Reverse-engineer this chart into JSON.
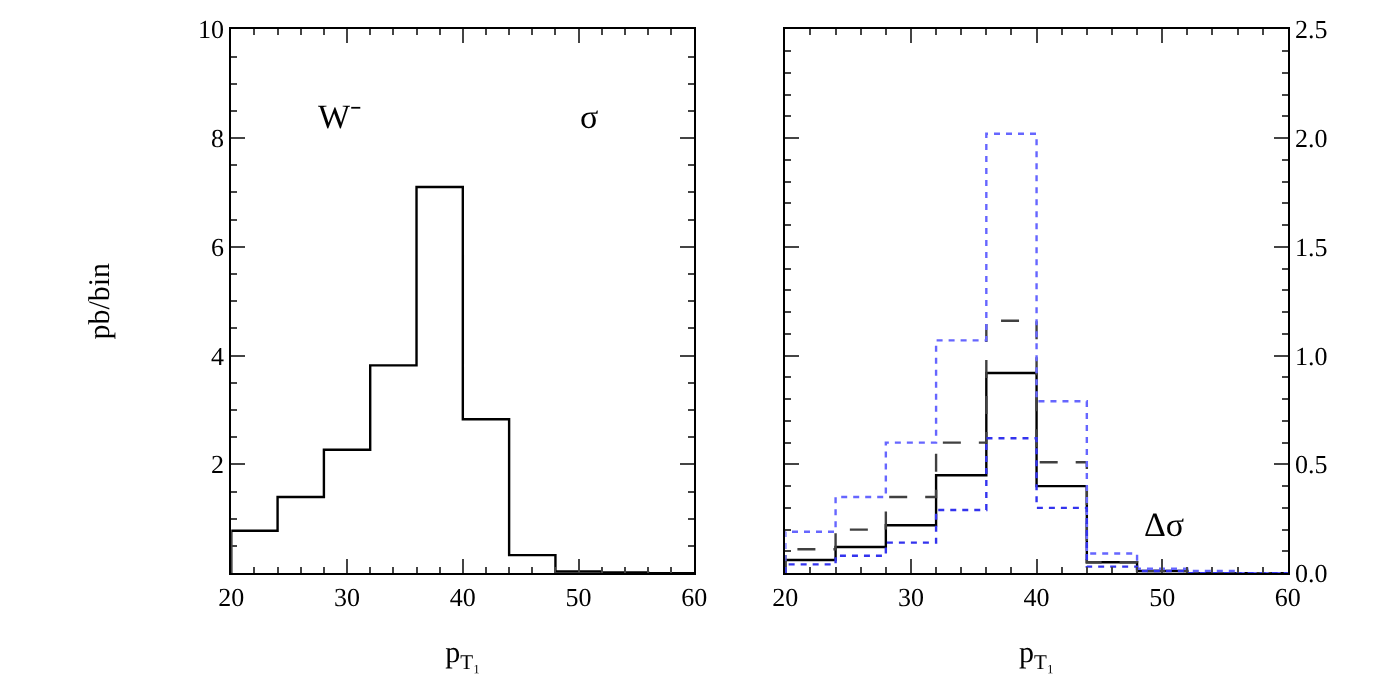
{
  "chart_data": [
    {
      "type": "histogram",
      "bins": [
        20,
        24,
        28,
        32,
        36,
        40,
        44,
        48,
        52,
        56,
        60
      ],
      "values": [
        0.78,
        1.4,
        2.27,
        3.82,
        7.1,
        2.83,
        0.33,
        0.03,
        0.01,
        0
      ],
      "color": "#000000",
      "line_style": "solid",
      "xlim": [
        20,
        60
      ],
      "xticks": [
        20,
        30,
        40,
        50,
        60
      ],
      "ylim": [
        0,
        10
      ],
      "yticks": [
        2,
        4,
        6,
        8,
        10
      ],
      "xlabel": "p$_{T₁}$",
      "ylabel": "pb/bin",
      "annotations": [
        "W⁻",
        "σ"
      ]
    },
    {
      "type": "histogram",
      "bins": [
        20,
        24,
        28,
        32,
        36,
        40,
        44,
        48,
        52,
        56,
        60
      ],
      "series": [
        {
          "color": "#000000",
          "line_style": "solid",
          "axis": "y2",
          "values": [
            0.06,
            0.12,
            0.22,
            0.45,
            0.92,
            0.4,
            0.05,
            0.01,
            0,
            0
          ]
        },
        {
          "color": "#404040",
          "line_style": "dashed",
          "axis": "y2",
          "values": [
            0.11,
            0.2,
            0.35,
            0.6,
            1.16,
            0.51,
            0.05,
            0.01,
            0,
            0
          ]
        },
        {
          "color": "#6666ff",
          "line_style": "dotted",
          "axis": "y2",
          "values": [
            0.19,
            0.35,
            0.6,
            1.07,
            2.02,
            0.79,
            0.09,
            0.02,
            0.01,
            0
          ]
        },
        {
          "color": "#3333ee",
          "line_style": "dotted",
          "axis": "y2",
          "values": [
            0.04,
            0.08,
            0.14,
            0.29,
            0.62,
            0.3,
            0.03,
            0.01,
            0,
            0
          ]
        }
      ],
      "xlim": [
        20,
        60
      ],
      "xticks": [
        20,
        30,
        40,
        50,
        60
      ],
      "y2lim": [
        0,
        2.5
      ],
      "y2ticks": [
        {
          "value": 0,
          "label": "0.0"
        },
        0.5,
        {
          "value": 1,
          "label": "1.0"
        },
        1.5,
        {
          "value": 2,
          "label": "2.0"
        },
        2.5
      ],
      "xlabel": "p$_{T₁}$",
      "annotations": [
        "Δσ"
      ]
    }
  ]
}
